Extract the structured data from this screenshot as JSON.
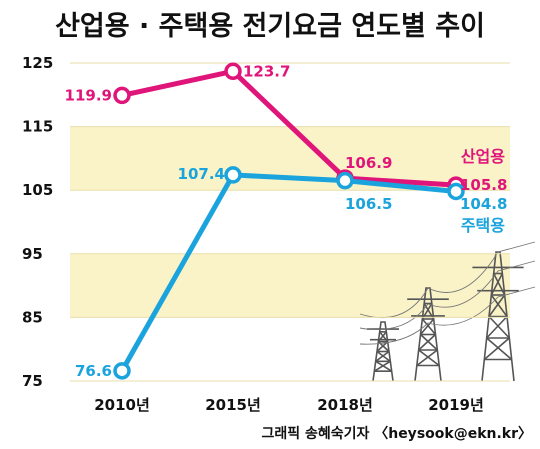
{
  "chart_data": {
    "type": "line",
    "title": "산업용 · 주택용 전기요금 연도별 추이",
    "categories": [
      "2010년",
      "2015년",
      "2018년",
      "2019년"
    ],
    "ylim": [
      75,
      125
    ],
    "yticks": [
      75,
      85,
      95,
      105,
      115,
      125
    ],
    "grid": "alternating horizontal bands",
    "series": [
      {
        "name": "산업용",
        "color": "#e0157a",
        "values": [
          119.9,
          123.7,
          106.9,
          105.8
        ],
        "labels": [
          "119.9",
          "123.7",
          "106.9",
          "105.8"
        ]
      },
      {
        "name": "주택용",
        "color": "#1aa3dc",
        "values": [
          76.6,
          107.4,
          106.5,
          104.8
        ],
        "labels": [
          "76.6",
          "107.4",
          "106.5",
          "104.8"
        ]
      }
    ],
    "credit": "그래픽 송혜숙기자 〈heysook@ekn.kr〉"
  }
}
